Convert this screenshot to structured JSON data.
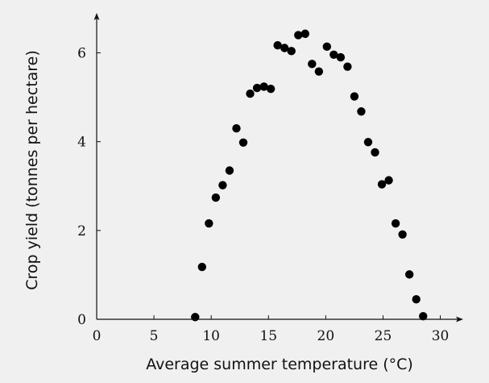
{
  "chart_data": {
    "type": "scatter",
    "xlabel": "Average summer temperature (°C)",
    "ylabel": "Crop yield (tonnes per hectare)",
    "xlim": [
      0,
      32
    ],
    "ylim": [
      0,
      6.9
    ],
    "x_ticks": [
      "0",
      "5",
      "10",
      "15",
      "20",
      "25",
      "30"
    ],
    "y_ticks": [
      "0",
      "2",
      "4",
      "6"
    ],
    "grid": false,
    "marker_color": "#000000",
    "points": [
      {
        "x": 8.6,
        "y": 0.05
      },
      {
        "x": 9.2,
        "y": 1.18
      },
      {
        "x": 9.8,
        "y": 2.16
      },
      {
        "x": 10.4,
        "y": 2.74
      },
      {
        "x": 11.0,
        "y": 3.02
      },
      {
        "x": 11.6,
        "y": 3.35
      },
      {
        "x": 12.2,
        "y": 4.3
      },
      {
        "x": 12.8,
        "y": 3.98
      },
      {
        "x": 13.4,
        "y": 5.08
      },
      {
        "x": 14.0,
        "y": 5.21
      },
      {
        "x": 14.6,
        "y": 5.24
      },
      {
        "x": 15.2,
        "y": 5.19
      },
      {
        "x": 15.8,
        "y": 6.17
      },
      {
        "x": 16.4,
        "y": 6.11
      },
      {
        "x": 17.0,
        "y": 6.04
      },
      {
        "x": 17.6,
        "y": 6.4
      },
      {
        "x": 18.2,
        "y": 6.43
      },
      {
        "x": 18.8,
        "y": 5.75
      },
      {
        "x": 19.4,
        "y": 5.58
      },
      {
        "x": 20.1,
        "y": 6.14
      },
      {
        "x": 20.7,
        "y": 5.96
      },
      {
        "x": 21.3,
        "y": 5.9
      },
      {
        "x": 21.9,
        "y": 5.69
      },
      {
        "x": 22.5,
        "y": 5.02
      },
      {
        "x": 23.1,
        "y": 4.68
      },
      {
        "x": 23.7,
        "y": 3.99
      },
      {
        "x": 24.3,
        "y": 3.76
      },
      {
        "x": 24.9,
        "y": 3.04
      },
      {
        "x": 25.5,
        "y": 3.13
      },
      {
        "x": 26.1,
        "y": 2.16
      },
      {
        "x": 26.7,
        "y": 1.91
      },
      {
        "x": 27.3,
        "y": 1.01
      },
      {
        "x": 27.9,
        "y": 0.45
      },
      {
        "x": 28.5,
        "y": 0.07
      }
    ]
  }
}
